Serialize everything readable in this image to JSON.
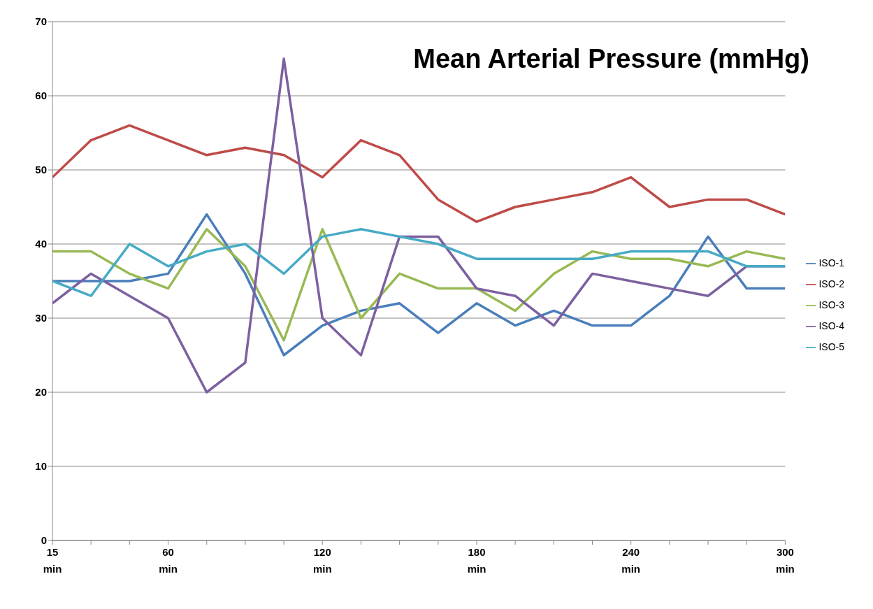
{
  "chart_data": {
    "type": "line",
    "title": "Mean Arterial Pressure (mmHg)",
    "categories": [
      "15 min",
      null,
      null,
      "60 min",
      null,
      null,
      null,
      "120 min",
      null,
      null,
      null,
      "180 min",
      null,
      null,
      null,
      "240 min",
      null,
      null,
      null,
      "300 min"
    ],
    "series": [
      {
        "name": "ISO-1",
        "color": "#4a7ebb",
        "values": [
          35,
          35,
          35,
          36,
          44,
          36,
          25,
          29,
          31,
          32,
          28,
          32,
          29,
          31,
          29,
          29,
          33,
          41,
          34,
          34
        ]
      },
      {
        "name": "ISO-2",
        "color": "#be4b48",
        "values": [
          49,
          54,
          56,
          54,
          52,
          53,
          52,
          49,
          54,
          52,
          46,
          43,
          45,
          46,
          47,
          49,
          45,
          46,
          46,
          44
        ]
      },
      {
        "name": "ISO-3",
        "color": "#98b954",
        "values": [
          39,
          39,
          36,
          34,
          42,
          37,
          27,
          42,
          30,
          36,
          34,
          34,
          31,
          36,
          39,
          38,
          38,
          37,
          39,
          38
        ]
      },
      {
        "name": "ISO-4",
        "color": "#7d60a0",
        "values": [
          32,
          36,
          33,
          30,
          20,
          24,
          65,
          30,
          25,
          41,
          41,
          34,
          33,
          29,
          36,
          35,
          34,
          33,
          37,
          37
        ]
      },
      {
        "name": "ISO-5",
        "color": "#46aac5",
        "values": [
          35,
          33,
          40,
          37,
          39,
          40,
          36,
          41,
          42,
          41,
          40,
          38,
          38,
          38,
          38,
          39,
          39,
          39,
          37,
          37
        ]
      }
    ],
    "ylim": [
      0,
      70
    ],
    "yticks": [
      0,
      10,
      20,
      30,
      40,
      50,
      60,
      70
    ],
    "grid": "y",
    "legend": "right",
    "marker": "none",
    "line_style": "solid"
  }
}
